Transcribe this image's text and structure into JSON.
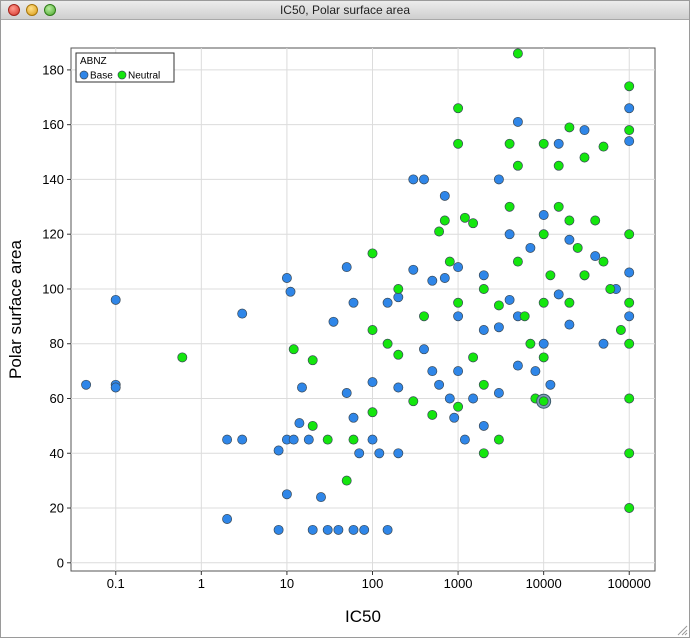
{
  "window": {
    "title": "IC50, Polar surface area"
  },
  "colors": {
    "Base": "#2f86e8",
    "Neutral": "#14e60e",
    "outline": "#3a4a58",
    "grid": "#dcdcdc"
  },
  "chart_data": {
    "type": "scatter",
    "xlabel": "IC50",
    "ylabel": "Polar surface area",
    "xscale": "log",
    "xlim": [
      0.03,
      200000
    ],
    "ylim": [
      -3,
      188
    ],
    "xticks": [
      0.1,
      1,
      10,
      100,
      1000,
      10000,
      100000
    ],
    "xtick_labels": [
      "0.1",
      "1",
      "10",
      "100",
      "1000",
      "10000",
      "100000"
    ],
    "yticks": [
      0,
      20,
      40,
      60,
      80,
      100,
      120,
      140,
      160,
      180
    ],
    "ytick_labels": [
      "0",
      "20",
      "40",
      "60",
      "80",
      "100",
      "120",
      "140",
      "160",
      "180"
    ],
    "grid": true,
    "legend": {
      "title": "ABNZ",
      "position": "top-left",
      "entries": [
        "Base",
        "Neutral"
      ]
    },
    "highlight": {
      "x": 10000,
      "y": 59
    },
    "series": [
      {
        "name": "Base",
        "points": [
          [
            0.045,
            65
          ],
          [
            0.1,
            96
          ],
          [
            0.1,
            65
          ],
          [
            0.1,
            64
          ],
          [
            2,
            45
          ],
          [
            2,
            16
          ],
          [
            3,
            91
          ],
          [
            3,
            45
          ],
          [
            8,
            41
          ],
          [
            8,
            12
          ],
          [
            10,
            104
          ],
          [
            10,
            45
          ],
          [
            10,
            25
          ],
          [
            11,
            99
          ],
          [
            12,
            45
          ],
          [
            14,
            51
          ],
          [
            15,
            64
          ],
          [
            18,
            45
          ],
          [
            20,
            12
          ],
          [
            25,
            24
          ],
          [
            30,
            12
          ],
          [
            35,
            88
          ],
          [
            40,
            12
          ],
          [
            50,
            108
          ],
          [
            50,
            62
          ],
          [
            60,
            95
          ],
          [
            60,
            53
          ],
          [
            60,
            12
          ],
          [
            70,
            40
          ],
          [
            80,
            12
          ],
          [
            100,
            66
          ],
          [
            100,
            45
          ],
          [
            120,
            40
          ],
          [
            150,
            95
          ],
          [
            150,
            12
          ],
          [
            200,
            97
          ],
          [
            200,
            64
          ],
          [
            200,
            40
          ],
          [
            300,
            140
          ],
          [
            300,
            107
          ],
          [
            400,
            140
          ],
          [
            400,
            78
          ],
          [
            500,
            103
          ],
          [
            500,
            70
          ],
          [
            600,
            65
          ],
          [
            700,
            134
          ],
          [
            700,
            104
          ],
          [
            800,
            60
          ],
          [
            900,
            53
          ],
          [
            1000,
            108
          ],
          [
            1000,
            90
          ],
          [
            1000,
            70
          ],
          [
            1200,
            45
          ],
          [
            1500,
            60
          ],
          [
            2000,
            105
          ],
          [
            2000,
            85
          ],
          [
            2000,
            50
          ],
          [
            3000,
            140
          ],
          [
            3000,
            86
          ],
          [
            3000,
            62
          ],
          [
            4000,
            120
          ],
          [
            4000,
            96
          ],
          [
            5000,
            161
          ],
          [
            5000,
            90
          ],
          [
            5000,
            72
          ],
          [
            7000,
            115
          ],
          [
            8000,
            70
          ],
          [
            10000,
            127
          ],
          [
            10000,
            80
          ],
          [
            12000,
            65
          ],
          [
            15000,
            153
          ],
          [
            15000,
            98
          ],
          [
            20000,
            118
          ],
          [
            20000,
            87
          ],
          [
            30000,
            158
          ],
          [
            30000,
            105
          ],
          [
            40000,
            112
          ],
          [
            50000,
            80
          ],
          [
            70000,
            100
          ],
          [
            100000,
            166
          ],
          [
            100000,
            154
          ],
          [
            100000,
            106
          ],
          [
            100000,
            90
          ]
        ]
      },
      {
        "name": "Neutral",
        "points": [
          [
            0.6,
            75
          ],
          [
            12,
            78
          ],
          [
            20,
            74
          ],
          [
            20,
            50
          ],
          [
            30,
            45
          ],
          [
            50,
            30
          ],
          [
            60,
            45
          ],
          [
            100,
            113
          ],
          [
            100,
            85
          ],
          [
            100,
            55
          ],
          [
            150,
            80
          ],
          [
            200,
            100
          ],
          [
            200,
            76
          ],
          [
            300,
            59
          ],
          [
            400,
            90
          ],
          [
            500,
            54
          ],
          [
            600,
            121
          ],
          [
            700,
            125
          ],
          [
            800,
            110
          ],
          [
            1000,
            166
          ],
          [
            1000,
            153
          ],
          [
            1000,
            95
          ],
          [
            1000,
            57
          ],
          [
            1200,
            126
          ],
          [
            1500,
            124
          ],
          [
            1500,
            75
          ],
          [
            2000,
            100
          ],
          [
            2000,
            65
          ],
          [
            2000,
            40
          ],
          [
            3000,
            94
          ],
          [
            3000,
            45
          ],
          [
            4000,
            153
          ],
          [
            4000,
            130
          ],
          [
            5000,
            186
          ],
          [
            5000,
            145
          ],
          [
            5000,
            110
          ],
          [
            6000,
            90
          ],
          [
            7000,
            80
          ],
          [
            8000,
            60
          ],
          [
            10000,
            153
          ],
          [
            10000,
            120
          ],
          [
            10000,
            95
          ],
          [
            10000,
            75
          ],
          [
            12000,
            105
          ],
          [
            15000,
            145
          ],
          [
            15000,
            130
          ],
          [
            20000,
            159
          ],
          [
            20000,
            125
          ],
          [
            20000,
            95
          ],
          [
            25000,
            115
          ],
          [
            30000,
            148
          ],
          [
            30000,
            105
          ],
          [
            40000,
            125
          ],
          [
            50000,
            152
          ],
          [
            50000,
            110
          ],
          [
            60000,
            100
          ],
          [
            80000,
            85
          ],
          [
            100000,
            174
          ],
          [
            100000,
            158
          ],
          [
            100000,
            120
          ],
          [
            100000,
            95
          ],
          [
            100000,
            80
          ],
          [
            100000,
            60
          ],
          [
            100000,
            40
          ],
          [
            100000,
            20
          ]
        ]
      }
    ]
  }
}
